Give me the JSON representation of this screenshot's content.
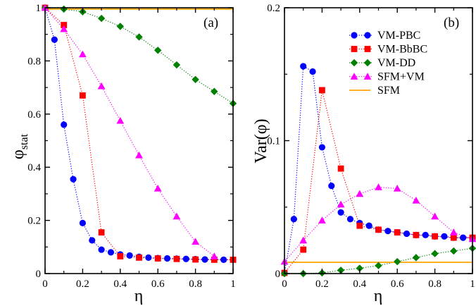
{
  "chart_data": [
    {
      "type": "scatter",
      "panel_label": "(a)",
      "xlabel": "η",
      "ylabel": "φ",
      "ylabel_sub": "stat",
      "xlim": [
        0,
        1
      ],
      "ylim": [
        0,
        1
      ],
      "x_ticks": [
        "0",
        "0.2",
        "0.4",
        "0.6",
        "0.8",
        "1"
      ],
      "y_ticks": [
        "0",
        "0.2",
        "0.4",
        "0.6",
        "0.8",
        "1"
      ],
      "grid": false,
      "series": [
        {
          "name": "VM-PBC",
          "color": "#0000ff",
          "marker": "circle",
          "line": "dotted",
          "x": [
            0,
            0.05,
            0.1,
            0.15,
            0.2,
            0.25,
            0.3,
            0.35,
            0.4,
            0.45,
            0.5,
            0.55,
            0.6,
            0.65,
            0.7,
            0.75,
            0.8,
            0.85,
            0.9,
            0.95,
            1.0
          ],
          "y": [
            1.0,
            0.88,
            0.56,
            0.355,
            0.19,
            0.125,
            0.09,
            0.08,
            0.072,
            0.068,
            0.063,
            0.06,
            0.058,
            0.057,
            0.056,
            0.055,
            0.054,
            0.053,
            0.053,
            0.052,
            0.052
          ]
        },
        {
          "name": "VM-BbBC",
          "color": "#ff0000",
          "marker": "square",
          "line": "dotted",
          "x": [
            0,
            0.1,
            0.2,
            0.3,
            0.4,
            0.5,
            0.6,
            0.7,
            0.8,
            0.9,
            1.0
          ],
          "y": [
            1.0,
            0.935,
            0.67,
            0.155,
            0.065,
            0.06,
            0.057,
            0.055,
            0.053,
            0.052,
            0.052
          ]
        },
        {
          "name": "VM-DD",
          "color": "#008000",
          "marker": "diamond",
          "line": "dotted",
          "x": [
            0,
            0.1,
            0.2,
            0.3,
            0.4,
            0.5,
            0.6,
            0.7,
            0.8,
            0.9,
            1.0
          ],
          "y": [
            1.0,
            0.995,
            0.985,
            0.96,
            0.93,
            0.89,
            0.84,
            0.785,
            0.73,
            0.685,
            0.64
          ]
        },
        {
          "name": "SFM+VM",
          "color": "#ff00ff",
          "marker": "triangle",
          "line": "dotted",
          "x": [
            0,
            0.1,
            0.2,
            0.3,
            0.4,
            0.5,
            0.6,
            0.7,
            0.8,
            0.9
          ],
          "y": [
            1.0,
            0.92,
            0.825,
            0.705,
            0.575,
            0.445,
            0.32,
            0.215,
            0.12,
            0.065
          ]
        },
        {
          "name": "SFM",
          "color": "#ffa500",
          "marker": "none",
          "line": "solid",
          "x": [
            0,
            1.0
          ],
          "y": [
            0.995,
            0.995
          ]
        }
      ]
    },
    {
      "type": "scatter",
      "panel_label": "(b)",
      "xlabel": "η",
      "ylabel": "Var(φ)",
      "xlim": [
        0,
        1
      ],
      "ylim": [
        0,
        0.2
      ],
      "x_ticks": [
        "0",
        "0.2",
        "0.4",
        "0.6",
        "0.8",
        "1"
      ],
      "y_ticks": [
        "0",
        "0.1",
        "0.2"
      ],
      "grid": false,
      "legend": {
        "placement": "top-right",
        "entries": [
          "VM-PBC",
          "VM-BbBC",
          "VM-DD",
          "SFM+VM",
          "SFM"
        ]
      },
      "series": [
        {
          "name": "VM-PBC",
          "color": "#0000ff",
          "marker": "circle",
          "line": "dotted",
          "x": [
            0,
            0.05,
            0.1,
            0.15,
            0.2,
            0.25,
            0.3,
            0.35,
            0.4,
            0.45,
            0.5,
            0.55,
            0.6,
            0.65,
            0.7,
            0.75,
            0.8,
            0.85,
            0.9,
            0.95,
            1.0
          ],
          "y": [
            0.0005,
            0.041,
            0.156,
            0.152,
            0.095,
            0.066,
            0.046,
            0.041,
            0.038,
            0.036,
            0.033,
            0.032,
            0.031,
            0.03,
            0.029,
            0.029,
            0.028,
            0.028,
            0.027,
            0.027,
            0.027
          ]
        },
        {
          "name": "VM-BbBC",
          "color": "#ff0000",
          "marker": "square",
          "line": "dotted",
          "x": [
            0,
            0.1,
            0.2,
            0.3,
            0.4,
            0.5,
            0.6,
            0.7,
            0.8,
            0.9,
            1.0
          ],
          "y": [
            0.0005,
            0.018,
            0.138,
            0.079,
            0.036,
            0.033,
            0.031,
            0.029,
            0.028,
            0.027,
            0.027
          ]
        },
        {
          "name": "VM-DD",
          "color": "#008000",
          "marker": "diamond",
          "line": "dotted",
          "x": [
            0,
            0.1,
            0.2,
            0.3,
            0.4,
            0.5,
            0.6,
            0.7,
            0.8,
            0.9,
            1.0
          ],
          "y": [
            0,
            0,
            0.0005,
            0.0025,
            0.004,
            0.006,
            0.009,
            0.012,
            0.015,
            0.017,
            0.019
          ]
        },
        {
          "name": "SFM+VM",
          "color": "#ff00ff",
          "marker": "triangle",
          "line": "dotted",
          "x": [
            0,
            0.1,
            0.2,
            0.3,
            0.4,
            0.5,
            0.6,
            0.7,
            0.8,
            0.9,
            1.0
          ],
          "y": [
            0.009,
            0.025,
            0.04,
            0.052,
            0.06,
            0.065,
            0.064,
            0.055,
            0.043,
            0.031,
            0.026
          ]
        },
        {
          "name": "SFM",
          "color": "#ffa500",
          "marker": "none",
          "line": "solid",
          "x": [
            0,
            1.0
          ],
          "y": [
            0.0085,
            0.0085
          ]
        }
      ]
    }
  ]
}
